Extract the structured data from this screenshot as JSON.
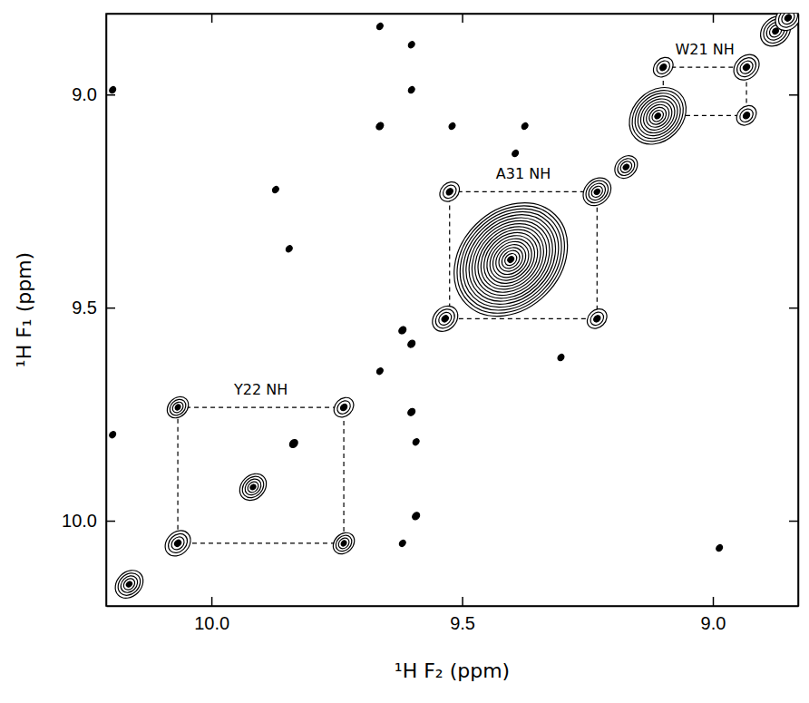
{
  "chart_data": {
    "type": "contour",
    "x_label": "¹H F₂ (ppm)",
    "y_label": "¹H F₁ (ppm)",
    "xlim": [
      10.21,
      8.83
    ],
    "ylim": [
      8.81,
      10.2
    ],
    "xticks": [
      {
        "value": 10,
        "label": "10.0"
      },
      9.5,
      {
        "value": 9,
        "label": "9.0"
      }
    ],
    "yticks": [
      {
        "value": 9,
        "label": "9.0"
      },
      9.5,
      {
        "value": 10,
        "label": "10.0"
      }
    ],
    "color": "#000000",
    "peaks": {
      "x": [
        10.164,
        10.067,
        10.067,
        9.736,
        9.736,
        9.917,
        9.525,
        9.231,
        9.534,
        9.231,
        9.403,
        9.173,
        9.099,
        8.933,
        9.11,
        8.933,
        8.875,
        8.85,
        9.836,
        9.664,
        9.601,
        9.601,
        9.664,
        9.52,
        9.375,
        9.394,
        9.619,
        9.601,
        9.664,
        9.601,
        9.592,
        9.592,
        9.619,
        9.872,
        9.845,
        10.197,
        10.197,
        8.987,
        9.303
      ],
      "y": [
        10.149,
        10.053,
        9.734,
        10.053,
        9.734,
        9.921,
        9.228,
        9.526,
        9.526,
        9.228,
        9.387,
        9.17,
        8.936,
        8.936,
        9.05,
        9.049,
        8.851,
        8.82,
        9.819,
        8.84,
        8.883,
        8.989,
        9.074,
        9.074,
        9.074,
        9.138,
        9.553,
        9.585,
        9.649,
        9.745,
        9.815,
        9.989,
        10.053,
        9.223,
        9.362,
        8.989,
        9.798,
        10.064,
        9.617
      ],
      "intensity": [
        0.6,
        0.5,
        0.35,
        0.35,
        0.3,
        0.55,
        0.3,
        0.3,
        0.5,
        0.6,
        10,
        0.4,
        0.3,
        0.5,
        2.5,
        0.3,
        0.7,
        0.5,
        0.05,
        0.03,
        0.03,
        0.03,
        0.04,
        0.03,
        0.03,
        0.03,
        0.04,
        0.04,
        0.03,
        0.04,
        0.03,
        0.04,
        0.03,
        0.03,
        0.03,
        0.03,
        0.03,
        0.03,
        0.03
      ]
    },
    "connections": [
      {
        "label": "Y22 NH",
        "x": [
          10.067,
          9.736
        ],
        "y": [
          9.734,
          10.053
        ],
        "line_style": "dashed"
      },
      {
        "label": "A31 NH",
        "x": [
          9.525,
          9.231
        ],
        "y": [
          9.228,
          9.526
        ],
        "line_style": "dashed"
      },
      {
        "label": "W21 NH",
        "x": [
          9.099,
          8.933
        ],
        "y": [
          8.936,
          9.049
        ],
        "line_style": "dashed"
      }
    ]
  }
}
